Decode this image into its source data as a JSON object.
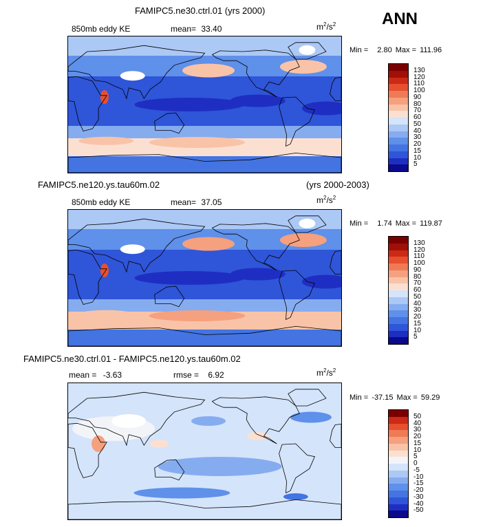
{
  "season_label": "ANN",
  "panels": [
    {
      "title": "FAMIPC5.ne30.ctrl.01 (yrs 2000)",
      "subtitle_left": "850mb eddy KE",
      "stat1_label": "mean=",
      "stat1_value": "33.40",
      "stat2_label": "",
      "stat2_value": "",
      "units": "m",
      "units_sup1": "2",
      "units_mid": "/s",
      "units_sup2": "2",
      "min_label": "Min =",
      "min_value": "2.80",
      "max_label": "Max =",
      "max_value": "111.96"
    },
    {
      "title": "FAMIPC5.ne120.ys.tau60m.02",
      "title_right": "(yrs 2000-2003)",
      "subtitle_left": "850mb eddy KE",
      "stat1_label": "mean=",
      "stat1_value": "37.05",
      "stat2_label": "",
      "stat2_value": "",
      "units": "m",
      "units_sup1": "2",
      "units_mid": "/s",
      "units_sup2": "2",
      "min_label": "Min =",
      "min_value": "1.74",
      "max_label": "Max =",
      "max_value": "119.87"
    },
    {
      "title": "FAMIPC5.ne30.ctrl.01 - FAMIPC5.ne120.ys.tau60m.02",
      "subtitle_left": "",
      "stat1_label": "mean =",
      "stat1_value": "-3.63",
      "stat2_label": "rmse =",
      "stat2_value": "6.92",
      "units": "m",
      "units_sup1": "2",
      "units_mid": "/s",
      "units_sup2": "2",
      "min_label": "Min =",
      "min_value": "-37.15",
      "max_label": "Max =",
      "max_value": "59.29"
    }
  ],
  "colors": {
    "abs_scale": [
      "#0a0a8c",
      "#1f2ec2",
      "#2f55d8",
      "#4474e2",
      "#5f90ea",
      "#86acf0",
      "#acc8f5",
      "#d4e4fa",
      "#fbe0d2",
      "#f9c3a8",
      "#f5a07e",
      "#f07a55",
      "#e6502f",
      "#cc2a14",
      "#a01008",
      "#7a0000"
    ],
    "diff_scale": [
      "#0a0a8c",
      "#1f2ec2",
      "#2f55d8",
      "#4474e2",
      "#5f90ea",
      "#86acf0",
      "#acc8f5",
      "#d4e4fa",
      "#f2f4f8",
      "#fbe0d2",
      "#f9c3a8",
      "#f5a07e",
      "#f07a55",
      "#e6502f",
      "#cc2a14",
      "#7a0000"
    ]
  },
  "chart_data": [
    {
      "type": "heatmap",
      "title": "FAMIPC5.ne30.ctrl.01 (yrs 2000)",
      "variable": "850mb eddy KE",
      "units": "m^2/s^2",
      "mean": 33.4,
      "min": 2.8,
      "max": 111.96,
      "colorbar_levels": [
        5,
        10,
        15,
        20,
        30,
        40,
        50,
        60,
        70,
        80,
        90,
        100,
        110,
        120,
        130
      ]
    },
    {
      "type": "heatmap",
      "title": "FAMIPC5.ne120.ys.tau60m.02 (yrs 2000-2003)",
      "variable": "850mb eddy KE",
      "units": "m^2/s^2",
      "mean": 37.05,
      "min": 1.74,
      "max": 119.87,
      "colorbar_levels": [
        5,
        10,
        15,
        20,
        30,
        40,
        50,
        60,
        70,
        80,
        90,
        100,
        110,
        120,
        130
      ]
    },
    {
      "type": "heatmap",
      "title": "FAMIPC5.ne30.ctrl.01 - FAMIPC5.ne120.ys.tau60m.02",
      "units": "m^2/s^2",
      "mean": -3.63,
      "rmse": 6.92,
      "min": -37.15,
      "max": 59.29,
      "colorbar_levels": [
        -50,
        -40,
        -30,
        -20,
        -15,
        -10,
        -5,
        0,
        5,
        10,
        15,
        20,
        30,
        40,
        50
      ]
    }
  ]
}
